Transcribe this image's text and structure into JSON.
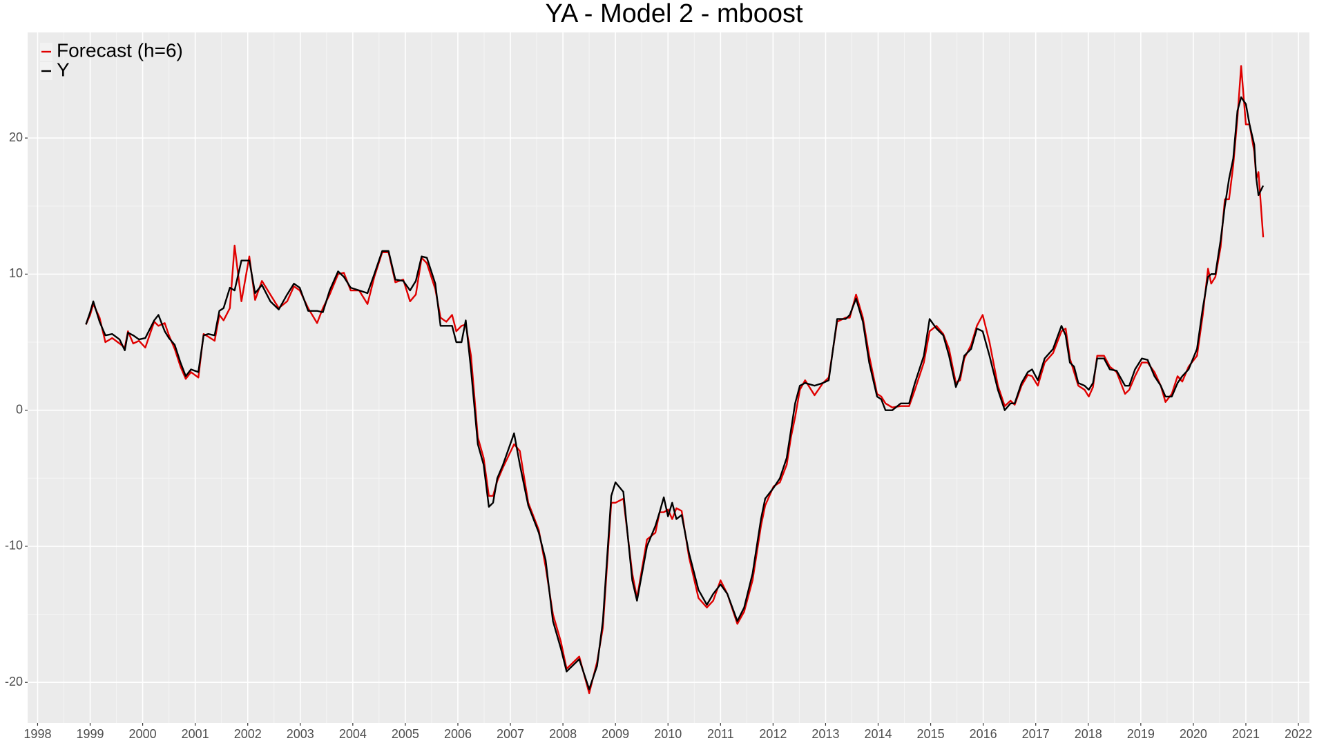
{
  "chart_data": {
    "type": "line",
    "title": "YA - Model 2 - mboost",
    "x": [
      1998.92,
      1999.0,
      1999.06,
      1999.18,
      1999.29,
      1999.42,
      1999.56,
      1999.66,
      1999.72,
      1999.82,
      1999.93,
      2000.05,
      2000.22,
      2000.3,
      2000.42,
      2000.5,
      2000.61,
      2000.72,
      2000.82,
      2000.92,
      2001.06,
      2001.16,
      2001.25,
      2001.37,
      2001.46,
      2001.54,
      2001.66,
      2001.75,
      2001.88,
      2002.03,
      2002.14,
      2002.27,
      2002.43,
      2002.59,
      2002.75,
      2002.88,
      2002.99,
      2003.15,
      2003.32,
      2003.43,
      2003.56,
      2003.72,
      2003.83,
      2003.96,
      2004.12,
      2004.28,
      2004.41,
      2004.56,
      2004.68,
      2004.81,
      2004.96,
      2005.09,
      2005.2,
      2005.31,
      2005.41,
      2005.57,
      2005.67,
      2005.78,
      2005.89,
      2005.97,
      2006.07,
      2006.15,
      2006.25,
      2006.38,
      2006.49,
      2006.59,
      2006.67,
      2006.75,
      2006.86,
      2007.07,
      2007.18,
      2007.34,
      2007.54,
      2007.67,
      2007.81,
      2007.96,
      2008.07,
      2008.31,
      2008.5,
      2008.65,
      2008.76,
      2008.92,
      2009.0,
      2009.15,
      2009.32,
      2009.41,
      2009.6,
      2009.76,
      2009.84,
      2009.92,
      2010.0,
      2010.08,
      2010.16,
      2010.26,
      2010.4,
      2010.58,
      2010.74,
      2010.86,
      2011.0,
      2011.13,
      2011.32,
      2011.45,
      2011.61,
      2011.77,
      2011.85,
      2012.01,
      2012.13,
      2012.26,
      2012.34,
      2012.42,
      2012.51,
      2012.61,
      2012.79,
      2012.95,
      2013.06,
      2013.22,
      2013.38,
      2013.46,
      2013.58,
      2013.71,
      2013.83,
      2013.98,
      2014.06,
      2014.14,
      2014.27,
      2014.43,
      2014.59,
      2014.7,
      2014.87,
      2014.98,
      2015.11,
      2015.24,
      2015.35,
      2015.48,
      2015.56,
      2015.64,
      2015.77,
      2015.88,
      2015.99,
      2016.12,
      2016.28,
      2016.41,
      2016.52,
      2016.6,
      2016.73,
      2016.85,
      2016.93,
      2017.04,
      2017.17,
      2017.33,
      2017.49,
      2017.57,
      2017.65,
      2017.73,
      2017.81,
      2017.93,
      2018.01,
      2018.09,
      2018.17,
      2018.3,
      2018.41,
      2018.54,
      2018.7,
      2018.78,
      2018.89,
      2019.02,
      2019.13,
      2019.26,
      2019.38,
      2019.47,
      2019.59,
      2019.7,
      2019.79,
      2019.91,
      2020.07,
      2020.18,
      2020.28,
      2020.34,
      2020.42,
      2020.52,
      2020.6,
      2020.68,
      2020.76,
      2020.84,
      2020.91,
      2021.0,
      2021.07,
      2021.16,
      2021.2,
      2021.24,
      2021.33
    ],
    "series": [
      {
        "name": "Forecast (h=6)",
        "color": "#e00000",
        "values": [
          6.3,
          7.0,
          7.8,
          6.8,
          5.0,
          5.3,
          4.9,
          4.6,
          5.8,
          4.9,
          5.1,
          4.6,
          6.5,
          6.2,
          6.4,
          5.5,
          4.5,
          3.2,
          2.3,
          2.8,
          2.4,
          5.6,
          5.4,
          5.1,
          7.0,
          6.6,
          7.5,
          12.1,
          8.0,
          11.3,
          8.1,
          9.5,
          8.5,
          7.5,
          8.0,
          9.1,
          8.8,
          7.5,
          6.4,
          7.5,
          8.5,
          10.0,
          10.1,
          8.8,
          8.8,
          7.8,
          9.8,
          11.6,
          11.6,
          9.4,
          9.6,
          8.0,
          8.5,
          11.2,
          10.8,
          8.9,
          6.8,
          6.5,
          7.0,
          5.8,
          6.2,
          6.3,
          4.0,
          -2.0,
          -3.5,
          -6.3,
          -6.3,
          -5.2,
          -4.2,
          -2.5,
          -3.0,
          -6.8,
          -8.8,
          -11.5,
          -15.0,
          -17.0,
          -19.0,
          -18.1,
          -20.8,
          -18.5,
          -16.0,
          -6.8,
          -6.8,
          -6.5,
          -12.0,
          -13.8,
          -9.5,
          -9.0,
          -7.5,
          -7.5,
          -7.3,
          -8.0,
          -7.2,
          -7.4,
          -10.8,
          -13.8,
          -14.5,
          -14.0,
          -12.5,
          -13.5,
          -15.7,
          -14.8,
          -12.5,
          -8.5,
          -7.0,
          -5.6,
          -5.3,
          -4.0,
          -2.0,
          -0.5,
          1.5,
          2.2,
          1.1,
          2.0,
          2.4,
          6.5,
          6.8,
          6.8,
          8.5,
          6.8,
          4.0,
          1.2,
          1.0,
          0.5,
          0.2,
          0.3,
          0.3,
          1.5,
          3.5,
          5.8,
          6.2,
          5.6,
          4.5,
          2.0,
          2.2,
          3.8,
          4.8,
          6.2,
          7.0,
          5.0,
          1.8,
          0.3,
          0.7,
          0.4,
          1.8,
          2.6,
          2.5,
          1.8,
          3.5,
          4.2,
          5.8,
          6.0,
          3.8,
          2.8,
          1.8,
          1.5,
          1.0,
          1.7,
          4.0,
          4.0,
          3.2,
          2.8,
          1.2,
          1.5,
          2.5,
          3.5,
          3.5,
          2.8,
          1.8,
          0.6,
          1.2,
          2.5,
          2.1,
          3.2,
          4.0,
          7.0,
          10.4,
          9.3,
          9.8,
          12.0,
          15.5,
          15.5,
          18.0,
          21.5,
          25.3,
          21.0,
          21.0,
          19.0,
          17.0,
          17.5,
          12.7
        ]
      },
      {
        "name": "Y",
        "color": "#000000",
        "values": [
          6.3,
          7.2,
          8.0,
          6.5,
          5.5,
          5.6,
          5.2,
          4.4,
          5.7,
          5.5,
          5.2,
          5.3,
          6.6,
          7.0,
          5.8,
          5.3,
          4.8,
          3.5,
          2.5,
          3.0,
          2.8,
          5.5,
          5.6,
          5.5,
          7.3,
          7.5,
          9.0,
          8.8,
          11.0,
          11.0,
          8.6,
          9.2,
          8.0,
          7.4,
          8.5,
          9.3,
          9.0,
          7.3,
          7.3,
          7.2,
          8.8,
          10.2,
          9.8,
          9.0,
          8.8,
          8.6,
          10.0,
          11.7,
          11.7,
          9.6,
          9.5,
          8.8,
          9.5,
          11.3,
          11.2,
          9.3,
          6.2,
          6.2,
          6.2,
          5.0,
          5.0,
          6.6,
          3.0,
          -2.5,
          -4.0,
          -7.1,
          -6.8,
          -5.0,
          -4.0,
          -1.7,
          -4.0,
          -7.0,
          -9.0,
          -11.0,
          -15.5,
          -17.5,
          -19.2,
          -18.3,
          -20.5,
          -18.8,
          -15.5,
          -6.3,
          -5.3,
          -6.0,
          -12.5,
          -14.0,
          -10.0,
          -8.5,
          -7.5,
          -6.4,
          -7.8,
          -6.8,
          -8.0,
          -7.7,
          -10.5,
          -13.2,
          -14.3,
          -13.5,
          -12.8,
          -13.5,
          -15.5,
          -14.5,
          -12.0,
          -8.0,
          -6.5,
          -5.7,
          -5.0,
          -3.5,
          -1.5,
          0.5,
          1.8,
          2.0,
          1.8,
          2.0,
          2.2,
          6.7,
          6.7,
          7.0,
          8.2,
          6.5,
          3.5,
          1.0,
          0.8,
          0.0,
          0.0,
          0.5,
          0.5,
          2.0,
          4.0,
          6.7,
          6.0,
          5.5,
          4.0,
          1.7,
          2.5,
          4.0,
          4.5,
          6.0,
          5.8,
          4.0,
          1.5,
          0.0,
          0.5,
          0.5,
          2.0,
          2.8,
          3.0,
          2.2,
          3.8,
          4.5,
          6.2,
          5.5,
          3.5,
          3.2,
          2.0,
          1.8,
          1.5,
          2.0,
          3.8,
          3.8,
          3.0,
          2.9,
          1.8,
          1.8,
          3.0,
          3.8,
          3.7,
          2.5,
          1.8,
          1.0,
          1.0,
          2.0,
          2.5,
          3.0,
          4.5,
          7.5,
          9.8,
          10.0,
          10.0,
          12.5,
          15.0,
          17.0,
          18.5,
          22.0,
          23.0,
          22.5,
          21.0,
          19.5,
          17.0,
          15.8,
          16.5
        ]
      }
    ],
    "xlim": [
      1997.81,
      2022.21
    ],
    "xticks": [
      1998,
      1999,
      2000,
      2001,
      2002,
      2003,
      2004,
      2005,
      2006,
      2007,
      2008,
      2009,
      2010,
      2011,
      2012,
      2013,
      2014,
      2015,
      2016,
      2017,
      2018,
      2019,
      2020,
      2021,
      2022
    ],
    "ylim": [
      -22.98,
      27.76
    ],
    "yticks": [
      -20,
      -10,
      0,
      10,
      20
    ],
    "grid": true,
    "legend": "top-left"
  }
}
